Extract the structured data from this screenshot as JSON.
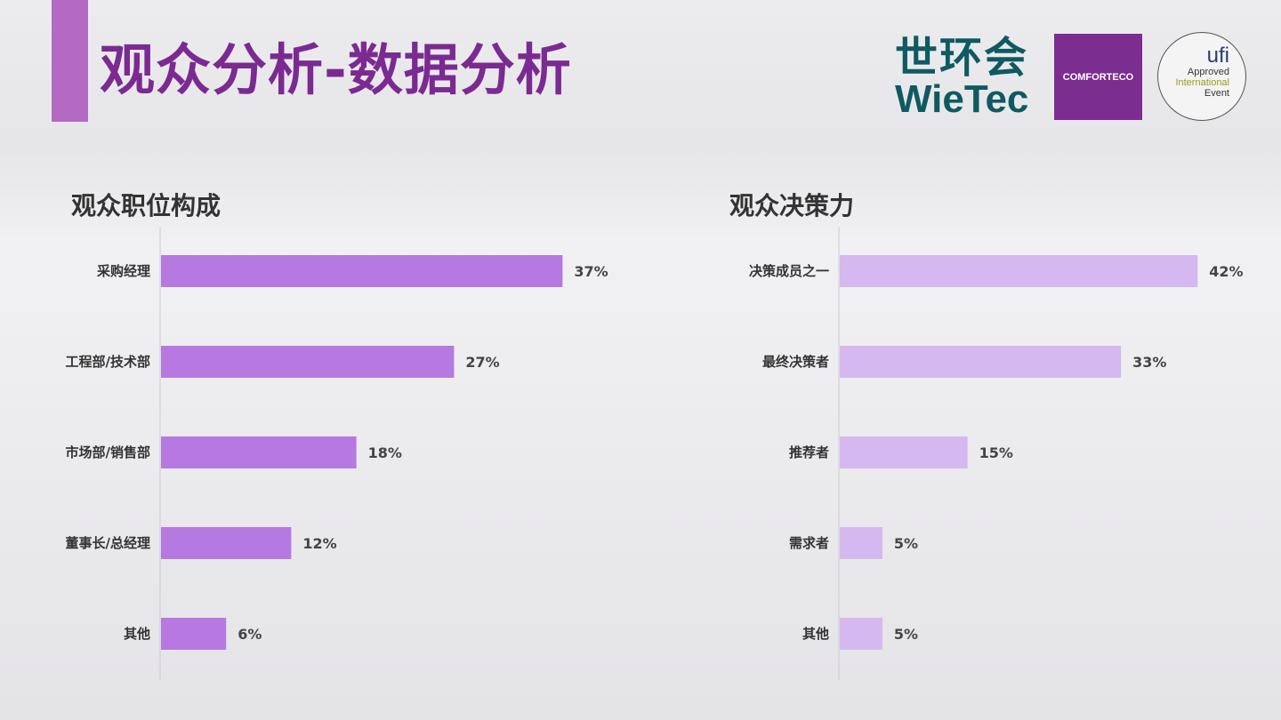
{
  "title": "观众分析-数据分析",
  "logos": {
    "wietec_cn": "世环会",
    "wietec_en": "WieTec",
    "comforteco": "COMFORTECO",
    "ufi": "ufi",
    "ufi_lines": [
      "Approved",
      "International",
      "Event"
    ]
  },
  "chart_data": [
    {
      "type": "bar",
      "orientation": "horizontal",
      "title": "观众职位构成",
      "categories": [
        "采购经理",
        "工程部/技术部",
        "市场部/销售部",
        "董事长/总经理",
        "其他"
      ],
      "values": [
        37,
        27,
        18,
        12,
        6
      ],
      "unit": "%",
      "xlim": [
        0,
        40
      ],
      "color": "#b679e1"
    },
    {
      "type": "bar",
      "orientation": "horizontal",
      "title": "观众决策力",
      "categories": [
        "决策成员之一",
        "最终决策者",
        "推荐者",
        "需求者",
        "其他"
      ],
      "values": [
        42,
        33,
        15,
        5,
        5
      ],
      "unit": "%",
      "xlim": [
        0,
        45
      ],
      "color": "#d4b8ef"
    }
  ]
}
